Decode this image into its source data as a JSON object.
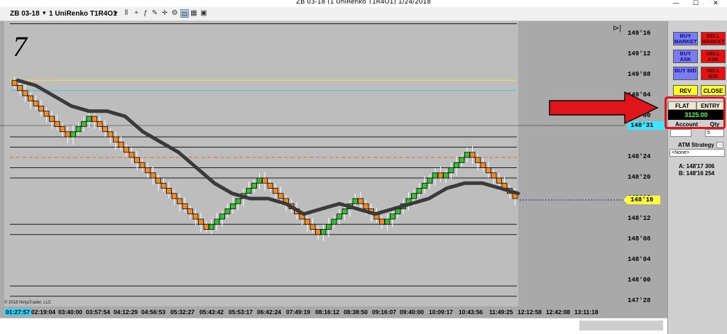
{
  "window": {
    "title": "ZB 03-18 (1 UniRenko T1R4O1)  1/24/2018"
  },
  "toolbar": {
    "instrument": "ZB 03-18",
    "bar_type": "1 UniRenko T1R4O1"
  },
  "chart_panel": {
    "number_label": "7",
    "copyright": "© 2018 NinjaTrader, LLC"
  },
  "price_tags": {
    "crosshair": "148'31",
    "last": "148'16"
  },
  "trade_panel": {
    "buy_market": "BUY MARKET",
    "sell_market": "SELL MARKET",
    "buy_ask": "BUY ASK",
    "sell_ask": "SELL ASK",
    "buy_bid": "BUY BID",
    "sell_bid": "SELL BID",
    "rev": "REV",
    "close": "CLOSE",
    "flat": "FLAT",
    "entry": "ENTRY",
    "position_value": "3125.00",
    "account": "Account",
    "qty": "Qty",
    "qty_value": "5",
    "atm_label": "ATM Strategy",
    "atm_value": "<None>",
    "ask_line": "A: 148'17    306",
    "bid_line": "B: 148'16    254"
  },
  "annotation": {
    "arrow_color": "#e0151b",
    "box_color": "#e0151b"
  },
  "chart_data": {
    "type": "renko",
    "title": "ZB 03-18 (1 UniRenko T1R4O1)  1/24/2018",
    "instrument": "ZB 03-18",
    "price_unit": "32nds",
    "y_ticks": [
      "149'16",
      "149'12",
      "149'08",
      "149'04",
      "149'00",
      "148'24",
      "148'20",
      "148'16",
      "148'12",
      "148'08",
      "148'04",
      "148'00",
      "147'28"
    ],
    "x_ticks": [
      "01:27:57",
      "02:19:04",
      "03:40:00",
      "03:57:54",
      "04:12:29",
      "04:56:53",
      "05:32:27",
      "05:43:42",
      "05:53:17",
      "06:42:24",
      "07:49:19",
      "08:16:12",
      "08:38:50",
      "09:16:07",
      "09:40:00",
      "10:09:17",
      "10:43:56",
      "11:49:25",
      "12:12:58",
      "12:42:08",
      "13:11:18"
    ],
    "ylim": [
      "147'28",
      "149'18"
    ],
    "grid": false,
    "up_color": "#2ec52e",
    "down_color": "#ff8c1a",
    "brick_closes": [
      149.06,
      149.05,
      149.04,
      149.03,
      149.02,
      149.01,
      149.0,
      148.31,
      148.3,
      148.29,
      148.28,
      148.29,
      148.3,
      148.31,
      149.0,
      148.31,
      148.3,
      148.29,
      148.28,
      148.27,
      148.26,
      148.25,
      148.24,
      148.23,
      148.22,
      148.21,
      148.2,
      148.19,
      148.18,
      148.17,
      148.16,
      148.15,
      148.14,
      148.13,
      148.12,
      148.11,
      148.1,
      148.11,
      148.12,
      148.13,
      148.14,
      148.15,
      148.16,
      148.17,
      148.18,
      148.19,
      148.2,
      148.19,
      148.18,
      148.17,
      148.16,
      148.15,
      148.14,
      148.13,
      148.12,
      148.11,
      148.1,
      148.09,
      148.1,
      148.11,
      148.12,
      148.13,
      148.14,
      148.15,
      148.16,
      148.15,
      148.14,
      148.13,
      148.12,
      148.11,
      148.12,
      148.13,
      148.14,
      148.15,
      148.16,
      148.17,
      148.18,
      148.19,
      148.2,
      148.21,
      148.2,
      148.21,
      148.22,
      148.23,
      148.24,
      148.25,
      148.24,
      148.23,
      148.22,
      148.21,
      148.2,
      148.19,
      148.18,
      148.17,
      148.16
    ],
    "moving_average": [
      149.07,
      149.06,
      149.04,
      149.02,
      149.01,
      149.01,
      149.0,
      148.29,
      148.27,
      148.25,
      148.22,
      148.19,
      148.17,
      148.16,
      148.16,
      148.15,
      148.13,
      148.14,
      148.15,
      148.14,
      148.13,
      148.14,
      148.15,
      148.16,
      148.18,
      148.19,
      148.19,
      148.18,
      148.17
    ],
    "horizontal_levels": [
      {
        "price": 149.18,
        "color": "#1a1a1a"
      },
      {
        "price": 149.07,
        "color": "#f0e040"
      },
      {
        "price": 149.05,
        "color": "#30d0d0"
      },
      {
        "price": 148.28,
        "color": "#1a1a1a"
      },
      {
        "price": 148.26,
        "color": "#1a1a1a"
      },
      {
        "price": 148.24,
        "color": "#e06010",
        "style": "dashdot"
      },
      {
        "price": 148.22,
        "color": "#1a1a1a"
      },
      {
        "price": 148.2,
        "color": "#1a1a1a"
      },
      {
        "price": 148.11,
        "color": "#1a1a1a"
      },
      {
        "price": 148.09,
        "color": "#1a1a1a"
      },
      {
        "price": 147.31,
        "color": "#1a1a1a"
      },
      {
        "price": 147.29,
        "color": "#1a1a1a"
      }
    ]
  }
}
